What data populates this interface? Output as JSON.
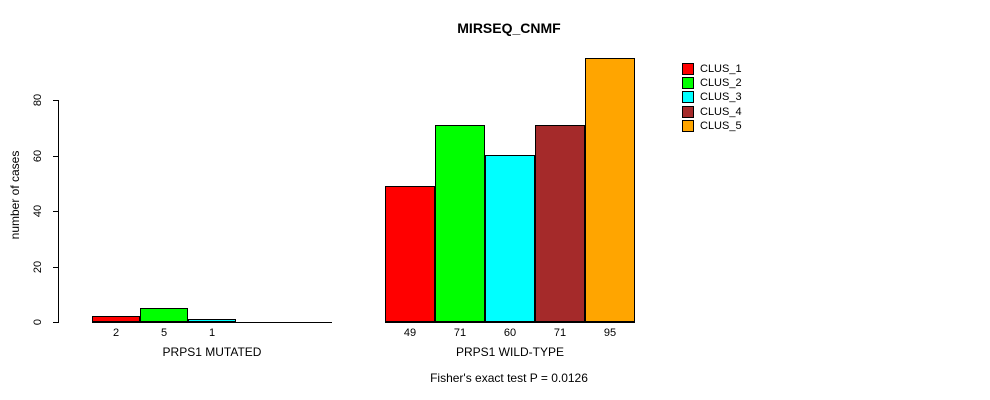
{
  "title": "MIRSEQ_CNMF",
  "y_axis": {
    "label": "number of cases",
    "tick_labels": [
      "0",
      "20",
      "40",
      "60",
      "80"
    ]
  },
  "legend": {
    "items": [
      {
        "label": "CLUS_1",
        "color": "#FF0000"
      },
      {
        "label": "CLUS_2",
        "color": "#00FF00"
      },
      {
        "label": "CLUS_3",
        "color": "#00FFFF"
      },
      {
        "label": "CLUS_4",
        "color": "#A52A2A"
      },
      {
        "label": "CLUS_5",
        "color": "#FFA500"
      }
    ]
  },
  "chart_data": {
    "type": "bar",
    "title": "MIRSEQ_CNMF",
    "xlabel": "",
    "ylabel": "number of cases",
    "yticks": [
      0,
      20,
      40,
      60,
      80
    ],
    "ylim": [
      0,
      95
    ],
    "grid": false,
    "legend_position": "right",
    "legend_entries": [
      "CLUS_1",
      "CLUS_2",
      "CLUS_3",
      "CLUS_4",
      "CLUS_5"
    ],
    "series_colors": [
      "#FF0000",
      "#00FF00",
      "#00FFFF",
      "#A52A2A",
      "#FFA500"
    ],
    "categories": [
      "PRPS1 MUTATED",
      "PRPS1 WILD-TYPE"
    ],
    "series": [
      {
        "name": "CLUS_1",
        "values": [
          2,
          49
        ]
      },
      {
        "name": "CLUS_2",
        "values": [
          5,
          71
        ]
      },
      {
        "name": "CLUS_3",
        "values": [
          1,
          60
        ]
      },
      {
        "name": "CLUS_4",
        "values": [
          0,
          71
        ]
      },
      {
        "name": "CLUS_5",
        "values": [
          0,
          95
        ]
      }
    ],
    "groups": [
      {
        "label": "PRPS1 MUTATED",
        "values": [
          2,
          5,
          1,
          0,
          0
        ],
        "bar_labels": [
          "2",
          "5",
          "1",
          "",
          ""
        ]
      },
      {
        "label": "PRPS1 WILD-TYPE",
        "values": [
          49,
          71,
          60,
          71,
          95
        ],
        "bar_labels": [
          "49",
          "71",
          "60",
          "71",
          "95"
        ]
      }
    ],
    "annotation": "Fisher's exact test P = 0.0126"
  }
}
